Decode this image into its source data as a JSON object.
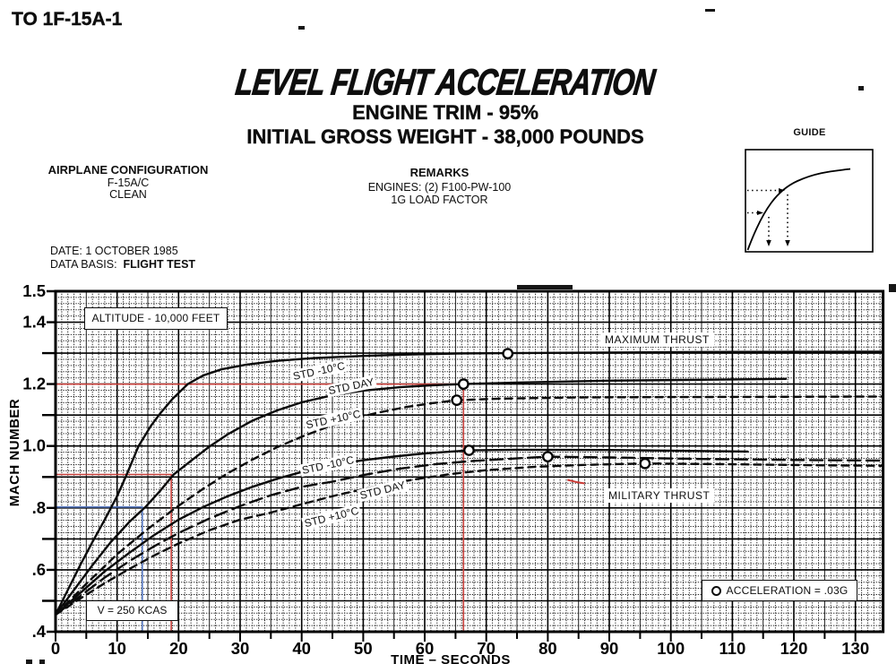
{
  "page": {
    "to_number": "TO 1F-15A-1",
    "title": "LEVEL FLIGHT ACCELERATION",
    "subtitle_engine_trim": "ENGINE TRIM - 95%",
    "subtitle_gross_weight": "INITIAL GROSS WEIGHT - 38,000 POUNDS",
    "config_heading": "AIRPLANE CONFIGURATION",
    "config_line1": "F-15A/C",
    "config_line2": "CLEAN",
    "remarks_heading": "REMARKS",
    "remarks_line1": "ENGINES: (2) F100-PW-100",
    "remarks_line2": "1G LOAD FACTOR",
    "date_line": "DATE: 1 OCTOBER 1985",
    "data_basis_label": "DATA BASIS:",
    "data_basis_value": "FLIGHT TEST",
    "guide_label": "GUIDE"
  },
  "chart_data": {
    "type": "line",
    "title": "LEVEL FLIGHT ACCELERATION",
    "xlabel": "TIME – SECONDS",
    "ylabel": "MACH NUMBER",
    "xlim": [
      0,
      134.5
    ],
    "ylim": [
      0.4,
      1.5
    ],
    "x_ticks": [
      0,
      10,
      20,
      30,
      40,
      50,
      60,
      70,
      80,
      90,
      100,
      110,
      120,
      130
    ],
    "y_ticks_labeled": [
      [
        "1.5",
        1.5
      ],
      [
        "1.4",
        1.4
      ],
      [
        "1.2",
        1.2
      ],
      [
        "1.0",
        1.0
      ],
      [
        ".8",
        0.8
      ],
      [
        ".6",
        0.6
      ],
      [
        ".4",
        0.4
      ]
    ],
    "y_ticks_unlabeled": [
      1.3,
      1.1,
      0.9,
      0.7,
      0.5
    ],
    "annotations": {
      "altitude_box": "ALTITUDE - 10,000 FEET",
      "speed_box": "V = 250 KCAS",
      "max_thrust": "MAXIMUM THRUST",
      "mil_thrust": "MILITARY THRUST",
      "legend": "ACCELERATION = .03G"
    },
    "series": [
      {
        "name": "maximum-thrust-std-minus-10",
        "group": "MAXIMUM THRUST",
        "label": "STD -10°C",
        "line": "solid",
        "label_at": [
          42.8,
          1.2425
        ],
        "label_rot": -12,
        "marker": [
          73.5,
          1.2985
        ],
        "points": [
          [
            0,
            0.455
          ],
          [
            2,
            0.535
          ],
          [
            4,
            0.615
          ],
          [
            6,
            0.69
          ],
          [
            8,
            0.762
          ],
          [
            10,
            0.838
          ],
          [
            11.5,
            0.905
          ],
          [
            13.5,
            1.0
          ],
          [
            15.5,
            1.065
          ],
          [
            17,
            1.105
          ],
          [
            19,
            1.152
          ],
          [
            21.5,
            1.2
          ],
          [
            24,
            1.228
          ],
          [
            27,
            1.248
          ],
          [
            31,
            1.263
          ],
          [
            36,
            1.275
          ],
          [
            42,
            1.284
          ],
          [
            50,
            1.291
          ],
          [
            58,
            1.296
          ],
          [
            66,
            1.299
          ],
          [
            73.5,
            1.3
          ],
          [
            90,
            1.302
          ],
          [
            110,
            1.304
          ],
          [
            134.3,
            1.305
          ]
        ]
      },
      {
        "name": "maximum-thrust-std-day",
        "group": "MAXIMUM THRUST",
        "label": "STD DAY",
        "line": "solid",
        "label_at": [
          48.0,
          1.1935
        ],
        "label_rot": -12,
        "marker": [
          66.3,
          1.2
        ],
        "points": [
          [
            0,
            0.455
          ],
          [
            3,
            0.535
          ],
          [
            6,
            0.615
          ],
          [
            9,
            0.69
          ],
          [
            12,
            0.755
          ],
          [
            14.6,
            0.803
          ],
          [
            17,
            0.855
          ],
          [
            19.2,
            0.908
          ],
          [
            22,
            0.952
          ],
          [
            25,
            0.998
          ],
          [
            28,
            1.038
          ],
          [
            32,
            1.082
          ],
          [
            36,
            1.115
          ],
          [
            40,
            1.141
          ],
          [
            45,
            1.164
          ],
          [
            50,
            1.179
          ],
          [
            56,
            1.19
          ],
          [
            61,
            1.196
          ],
          [
            66.3,
            1.2
          ],
          [
            75,
            1.205
          ],
          [
            90,
            1.211
          ],
          [
            105,
            1.214
          ],
          [
            118.7,
            1.217
          ]
        ]
      },
      {
        "name": "maximum-thrust-std-plus-10",
        "group": "MAXIMUM THRUST",
        "label": "STD +10°C",
        "line": "dash",
        "label_at": [
          45.1,
          1.086
        ],
        "label_rot": -12,
        "marker": [
          65.2,
          1.148
        ],
        "points": [
          [
            0,
            0.455
          ],
          [
            5,
            0.555
          ],
          [
            10,
            0.65
          ],
          [
            15,
            0.732
          ],
          [
            19.7,
            0.803
          ],
          [
            24,
            0.862
          ],
          [
            28,
            0.912
          ],
          [
            32,
            0.956
          ],
          [
            36,
            0.996
          ],
          [
            40,
            1.03
          ],
          [
            44,
            1.06
          ],
          [
            48,
            1.086
          ],
          [
            52,
            1.106
          ],
          [
            57,
            1.126
          ],
          [
            61,
            1.138
          ],
          [
            65.2,
            1.148
          ],
          [
            72,
            1.153
          ],
          [
            85,
            1.157
          ],
          [
            100,
            1.158
          ],
          [
            120,
            1.159
          ],
          [
            134.3,
            1.16
          ]
        ]
      },
      {
        "name": "military-thrust-std-minus-10",
        "group": "MILITARY THRUST",
        "label": "STD -10°C",
        "line": "solid",
        "label_at": [
          44.3,
          0.9385
        ],
        "label_rot": -12,
        "marker": [
          67.2,
          0.986
        ],
        "points": [
          [
            0,
            0.455
          ],
          [
            4,
            0.525
          ],
          [
            8,
            0.595
          ],
          [
            12,
            0.655
          ],
          [
            16,
            0.712
          ],
          [
            20,
            0.762
          ],
          [
            24,
            0.803
          ],
          [
            28,
            0.838
          ],
          [
            32,
            0.868
          ],
          [
            36,
            0.894
          ],
          [
            40,
            0.916
          ],
          [
            45,
            0.938
          ],
          [
            50,
            0.954
          ],
          [
            55,
            0.966
          ],
          [
            60,
            0.976
          ],
          [
            67.2,
            0.986
          ],
          [
            75,
            0.988
          ],
          [
            90,
            0.987
          ],
          [
            100,
            0.985
          ],
          [
            112.5,
            0.982
          ]
        ]
      },
      {
        "name": "military-thrust-std-day",
        "group": "MILITARY THRUST",
        "label": "STD DAY",
        "line": "long-dash",
        "label_at": [
          53.2,
          0.858
        ],
        "label_rot": -14,
        "marker": [
          80,
          0.9655
        ],
        "points": [
          [
            0,
            0.455
          ],
          [
            4,
            0.515
          ],
          [
            8,
            0.575
          ],
          [
            12,
            0.628
          ],
          [
            16,
            0.676
          ],
          [
            20,
            0.719
          ],
          [
            25,
            0.766
          ],
          [
            30,
            0.806
          ],
          [
            35,
            0.841
          ],
          [
            40,
            0.868
          ],
          [
            45,
            0.885
          ],
          [
            50,
            0.906
          ],
          [
            56,
            0.927
          ],
          [
            62,
            0.942
          ],
          [
            68,
            0.952
          ],
          [
            74,
            0.959
          ],
          [
            80,
            0.9655
          ],
          [
            90,
            0.963
          ],
          [
            105,
            0.958
          ],
          [
            120,
            0.955
          ],
          [
            134.3,
            0.953
          ]
        ]
      },
      {
        "name": "military-thrust-std-plus-10",
        "group": "MILITARY THRUST",
        "label": "STD +10°C",
        "line": "dash",
        "label_at": [
          44.9,
          0.7705
        ],
        "label_rot": -14,
        "marker": [
          95.8,
          0.9435
        ],
        "points": [
          [
            0,
            0.455
          ],
          [
            4,
            0.507
          ],
          [
            8,
            0.557
          ],
          [
            12,
            0.603
          ],
          [
            16,
            0.646
          ],
          [
            20,
            0.685
          ],
          [
            25,
            0.728
          ],
          [
            30,
            0.762
          ],
          [
            35,
            0.785
          ],
          [
            40,
            0.812
          ],
          [
            46,
            0.843
          ],
          [
            52,
            0.869
          ],
          [
            58,
            0.891
          ],
          [
            64,
            0.909
          ],
          [
            70,
            0.922
          ],
          [
            78,
            0.933
          ],
          [
            86,
            0.939
          ],
          [
            95.8,
            0.9435
          ],
          [
            110,
            0.941
          ],
          [
            122,
            0.938
          ],
          [
            134.3,
            0.936
          ]
        ]
      }
    ],
    "guide_lines": [
      {
        "name": "example-red-mach-1.2",
        "color": "#c8413c",
        "mach": 1.2,
        "t": 66.3
      },
      {
        "name": "example-red-mach-0.9",
        "color": "#c8413c",
        "mach": 0.908,
        "t": 18.8
      },
      {
        "name": "example-blue-mach-0.8",
        "color": "#5577c0",
        "mach": 0.803,
        "t": 14.1
      }
    ],
    "stray_red_mark": {
      "color": "#cc3a35",
      "from": [
        83.2,
        0.891
      ],
      "to": [
        86,
        0.879
      ]
    }
  }
}
